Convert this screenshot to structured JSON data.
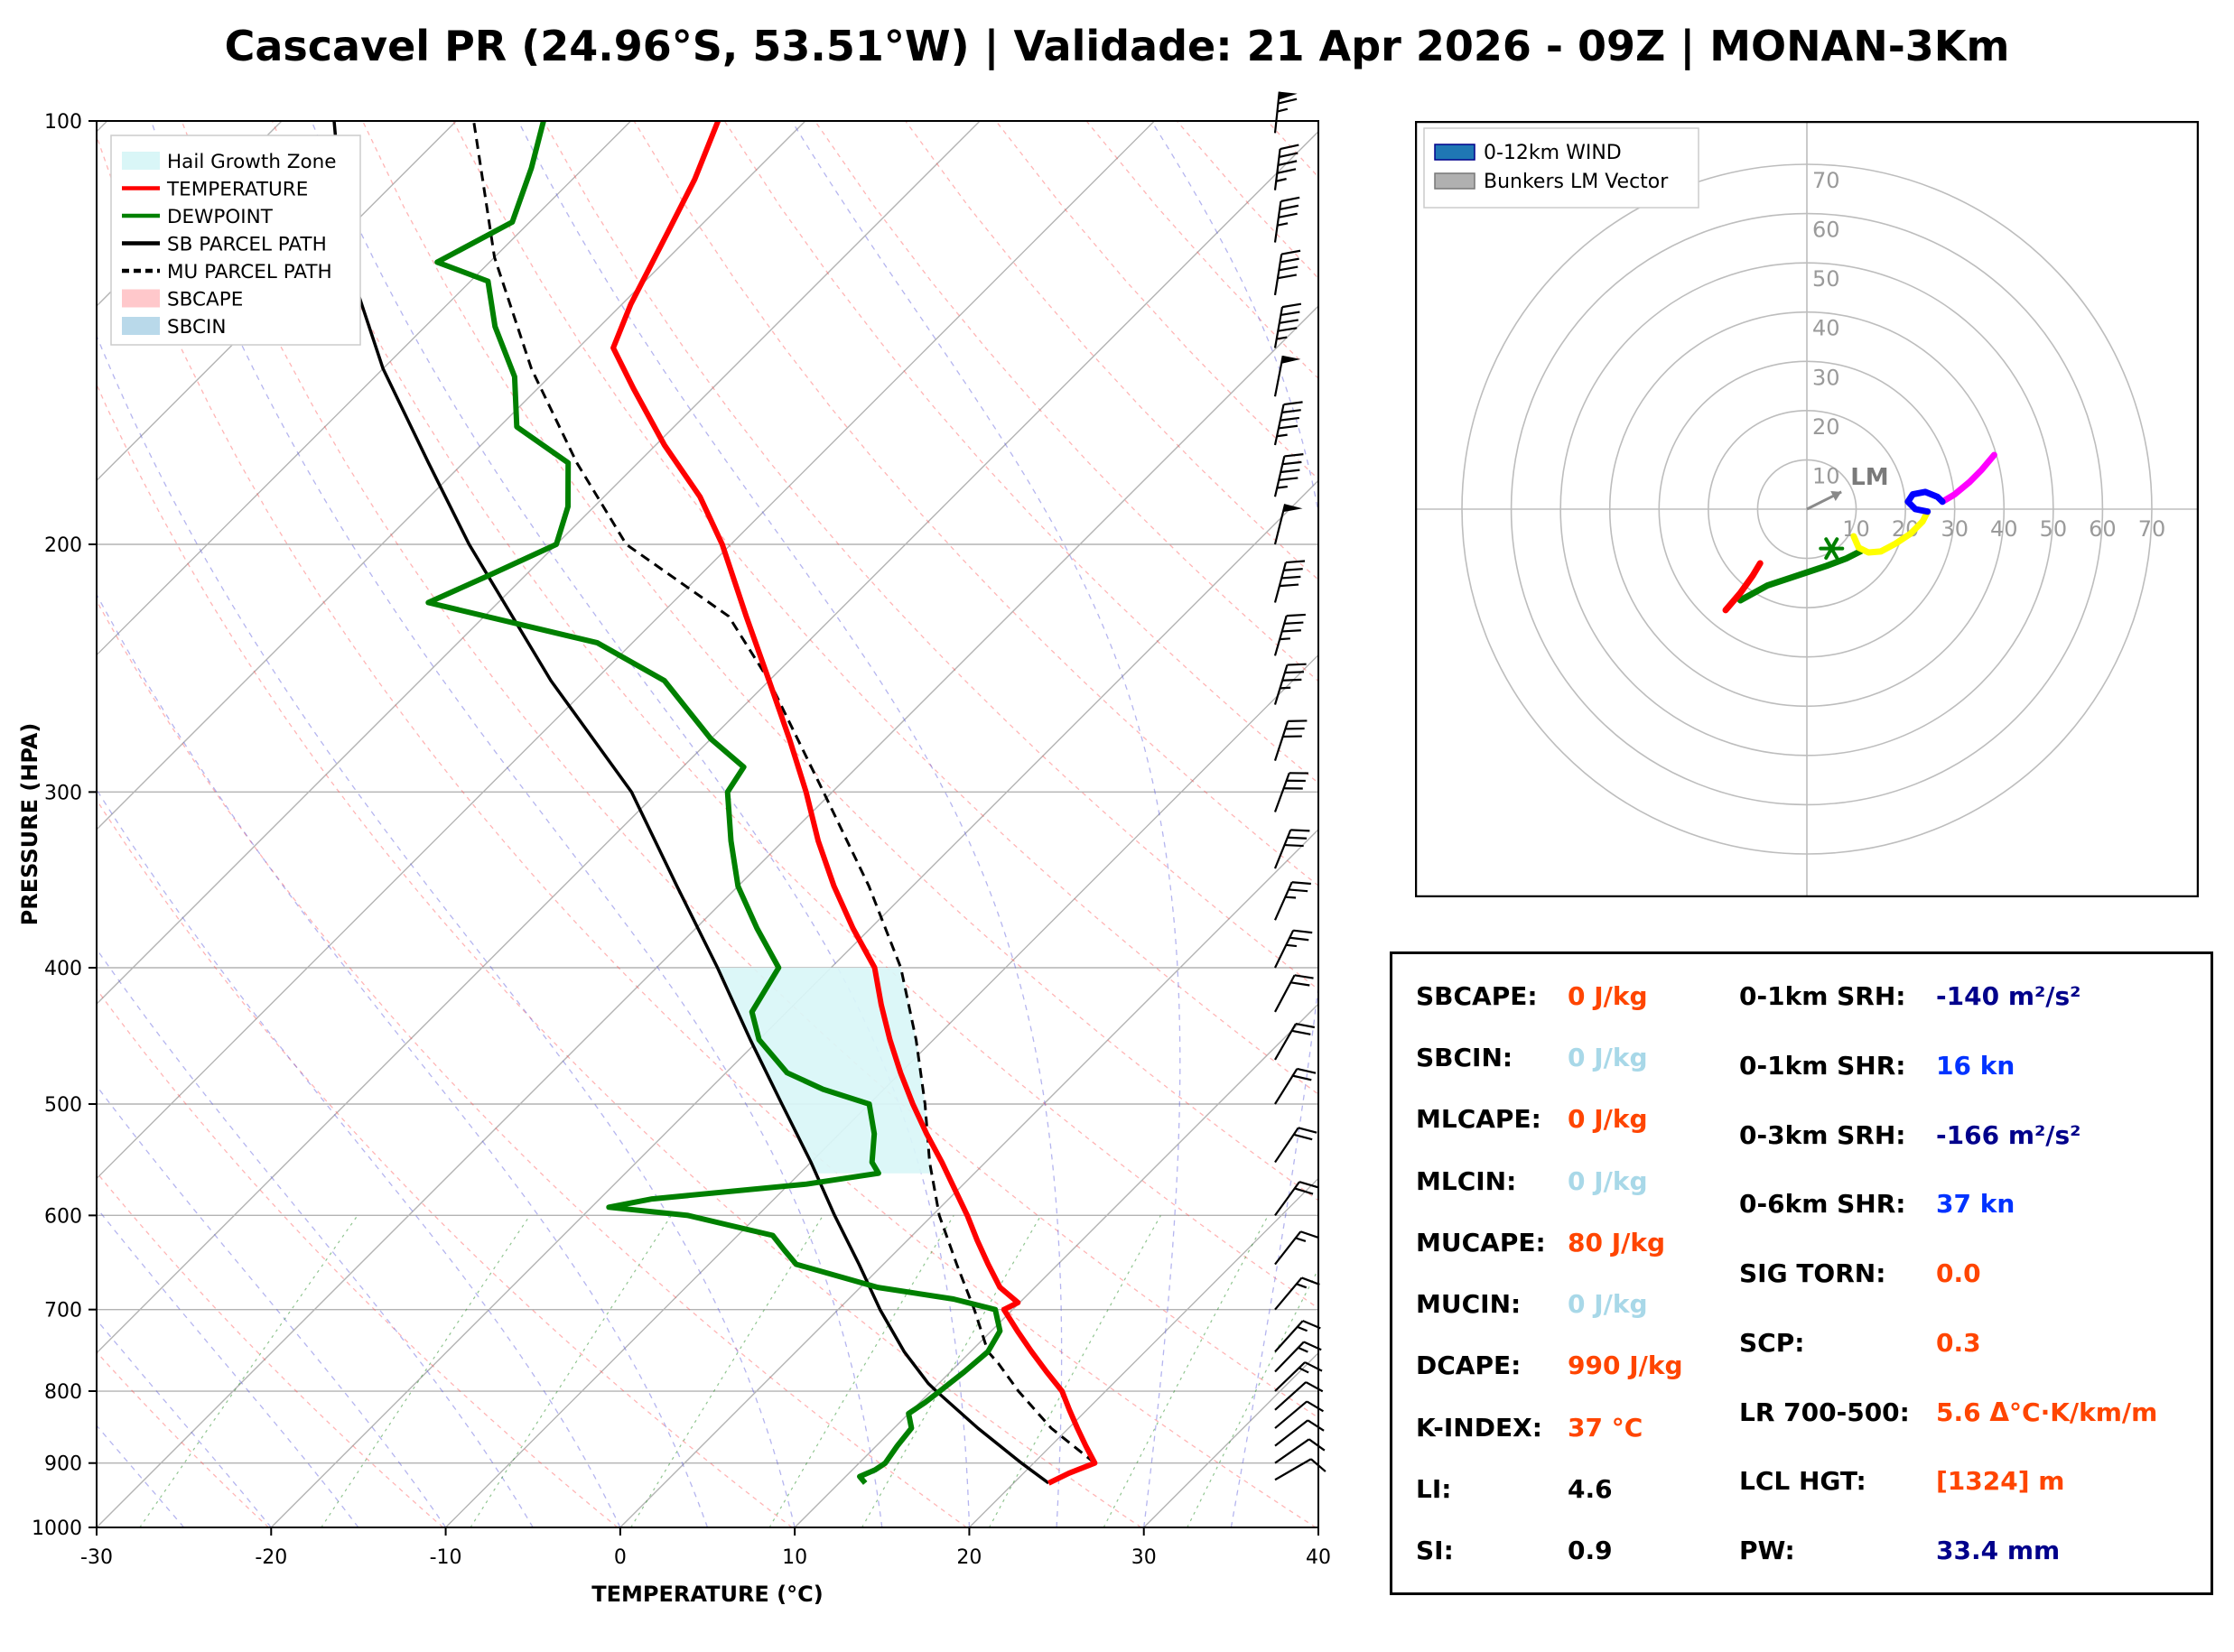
{
  "title": "Cascavel PR (24.96°S, 53.51°W) | Validade: 21 Apr 2026 - 09Z | MONAN-3Km",
  "colors": {
    "temperature": "#ff0000",
    "dewpoint": "#008000",
    "parcel": "#000000",
    "hail_zone": "#d9f6f7",
    "sbcape_patch": "#ffc8cb",
    "sbcin_patch": "#b9d9ea",
    "grid": "#b3b3b3"
  },
  "skewt": {
    "xlabel": "TEMPERATURE (°C)",
    "ylabel": "PRESSURE (HPA)",
    "x_ticks": [
      -30,
      -20,
      -10,
      0,
      10,
      20,
      30,
      40
    ],
    "p_ticks": [
      100,
      200,
      300,
      400,
      500,
      600,
      700,
      800,
      900,
      1000
    ],
    "xlim": [
      -30,
      40
    ],
    "plim": [
      100,
      1000
    ],
    "legend": [
      {
        "label": "Hail Growth Zone",
        "swatch": "patch",
        "color": "#d9f6f7"
      },
      {
        "label": "TEMPERATURE",
        "swatch": "line",
        "color": "#ff0000"
      },
      {
        "label": "DEWPOINT",
        "swatch": "line",
        "color": "#008000"
      },
      {
        "label": "SB PARCEL PATH",
        "swatch": "line",
        "color": "#000000"
      },
      {
        "label": "MU PARCEL PATH",
        "swatch": "dashed",
        "color": "#000000"
      },
      {
        "label": "SBCAPE",
        "swatch": "patch",
        "color": "#ffc8cb"
      },
      {
        "label": "SBCIN",
        "swatch": "patch",
        "color": "#b9d9ea"
      }
    ]
  },
  "chart_data": [
    {
      "type": "line",
      "name": "skew-t-log-p",
      "xlabel": "TEMPERATURE (°C)",
      "ylabel": "PRESSURE (HPA)",
      "xlim": [
        -30,
        40
      ],
      "pressure_range": [
        100,
        1000
      ],
      "series": [
        {
          "name": "TEMPERATURE",
          "color": "#ff0000",
          "points_p_T": [
            [
              930,
              22
            ],
            [
              915,
              22.6
            ],
            [
              900,
              23.5
            ],
            [
              875,
              22
            ],
            [
              850,
              20.5
            ],
            [
              825,
              19
            ],
            [
              800,
              17.5
            ],
            [
              775,
              15.5
            ],
            [
              750,
              13.5
            ],
            [
              725,
              11.5
            ],
            [
              700,
              9.5
            ],
            [
              692,
              9.9
            ],
            [
              675,
              8
            ],
            [
              650,
              6
            ],
            [
              625,
              4
            ],
            [
              600,
              2
            ],
            [
              575,
              -0.2
            ],
            [
              550,
              -2.5
            ],
            [
              525,
              -5
            ],
            [
              500,
              -7.5
            ],
            [
              475,
              -10
            ],
            [
              450,
              -12.5
            ],
            [
              425,
              -15
            ],
            [
              400,
              -17.5
            ],
            [
              375,
              -21
            ],
            [
              350,
              -24.5
            ],
            [
              325,
              -28
            ],
            [
              300,
              -31.5
            ],
            [
              275,
              -35.5
            ],
            [
              250,
              -40
            ],
            [
              225,
              -45
            ],
            [
              200,
              -50.5
            ],
            [
              185,
              -54.5
            ],
            [
              170,
              -59.5
            ],
            [
              155,
              -64.5
            ],
            [
              145,
              -68
            ],
            [
              135,
              -69.5
            ],
            [
              120,
              -71.5
            ],
            [
              110,
              -73
            ],
            [
              100,
              -75
            ]
          ]
        },
        {
          "name": "DEWPOINT",
          "color": "#008000",
          "points_p_T": [
            [
              930,
              11.5
            ],
            [
              920,
              10.8
            ],
            [
              910,
              11.3
            ],
            [
              900,
              11.5
            ],
            [
              875,
              11.2
            ],
            [
              850,
              11
            ],
            [
              830,
              10
            ],
            [
              815,
              10.3
            ],
            [
              800,
              10.5
            ],
            [
              775,
              10.8
            ],
            [
              750,
              11
            ],
            [
              725,
              10.5
            ],
            [
              700,
              9
            ],
            [
              688,
              6
            ],
            [
              675,
              1
            ],
            [
              650,
              -5
            ],
            [
              635,
              -6.5
            ],
            [
              620,
              -8
            ],
            [
              610,
              -11
            ],
            [
              600,
              -14
            ],
            [
              592,
              -19
            ],
            [
              584,
              -17
            ],
            [
              570,
              -9
            ],
            [
              560,
              -5.5
            ],
            [
              550,
              -6.5
            ],
            [
              525,
              -8
            ],
            [
              500,
              -10
            ],
            [
              488,
              -13.5
            ],
            [
              475,
              -16.5
            ],
            [
              450,
              -20
            ],
            [
              430,
              -22
            ],
            [
              400,
              -23
            ],
            [
              375,
              -26.5
            ],
            [
              350,
              -30
            ],
            [
              325,
              -33
            ],
            [
              300,
              -36
            ],
            [
              288,
              -36.5
            ],
            [
              275,
              -40
            ],
            [
              250,
              -46
            ],
            [
              235,
              -52
            ],
            [
              220,
              -64
            ],
            [
              210,
              -62
            ],
            [
              200,
              -60
            ],
            [
              188,
              -61.5
            ],
            [
              175,
              -64
            ],
            [
              165,
              -69
            ],
            [
              152,
              -72
            ],
            [
              140,
              -76
            ],
            [
              130,
              -79
            ],
            [
              126,
              -83
            ],
            [
              118,
              -81
            ],
            [
              108,
              -83
            ],
            [
              100,
              -85
            ]
          ]
        },
        {
          "name": "SB PARCEL PATH",
          "color": "#000000",
          "points_p_T": [
            [
              930,
              22
            ],
            [
              900,
              19.3
            ],
            [
              850,
              14.8
            ],
            [
              800,
              10.3
            ],
            [
              790,
              9.4
            ],
            [
              750,
              6.2
            ],
            [
              700,
              2.4
            ],
            [
              650,
              -1.4
            ],
            [
              600,
              -5.6
            ],
            [
              550,
              -10
            ],
            [
              500,
              -15
            ],
            [
              450,
              -20.5
            ],
            [
              400,
              -26.5
            ],
            [
              350,
              -33.5
            ],
            [
              300,
              -41.5
            ],
            [
              250,
              -52.5
            ],
            [
              200,
              -65
            ],
            [
              175,
              -72
            ],
            [
              150,
              -80
            ],
            [
              125,
              -88.5
            ],
            [
              100,
              -97
            ]
          ]
        },
        {
          "name": "MU PARCEL PATH",
          "color": "#000000",
          "points_p_T": [
            [
              900,
              23.5
            ],
            [
              850,
              19
            ],
            [
              800,
              15
            ],
            [
              765,
              12.3
            ],
            [
              750,
              11
            ],
            [
              700,
              7.8
            ],
            [
              650,
              4.2
            ],
            [
              600,
              0.4
            ],
            [
              550,
              -3.2
            ],
            [
              500,
              -6.8
            ],
            [
              450,
              -11
            ],
            [
              400,
              -16
            ],
            [
              350,
              -22.5
            ],
            [
              300,
              -30.5
            ],
            [
              250,
              -40
            ],
            [
              225,
              -46
            ],
            [
              200,
              -56
            ],
            [
              175,
              -63.5
            ],
            [
              150,
              -71.5
            ],
            [
              125,
              -80
            ],
            [
              100,
              -89
            ]
          ]
        }
      ],
      "hail_growth_zone_p": [
        400,
        560
      ],
      "wind_barbs": [
        {
          "p": 925,
          "kn": 8,
          "dir": 60
        },
        {
          "p": 900,
          "kn": 10,
          "dir": 55
        },
        {
          "p": 875,
          "kn": 10,
          "dir": 52
        },
        {
          "p": 850,
          "kn": 12,
          "dir": 50
        },
        {
          "p": 825,
          "kn": 12,
          "dir": 48
        },
        {
          "p": 800,
          "kn": 15,
          "dir": 46
        },
        {
          "p": 775,
          "kn": 15,
          "dir": 44
        },
        {
          "p": 750,
          "kn": 15,
          "dir": 42
        },
        {
          "p": 700,
          "kn": 15,
          "dir": 40
        },
        {
          "p": 650,
          "kn": 15,
          "dir": 38
        },
        {
          "p": 600,
          "kn": 18,
          "dir": 36
        },
        {
          "p": 550,
          "kn": 20,
          "dir": 34
        },
        {
          "p": 500,
          "kn": 20,
          "dir": 32
        },
        {
          "p": 465,
          "kn": 22,
          "dir": 30
        },
        {
          "p": 430,
          "kn": 22,
          "dir": 28
        },
        {
          "p": 400,
          "kn": 25,
          "dir": 26
        },
        {
          "p": 370,
          "kn": 25,
          "dir": 24
        },
        {
          "p": 340,
          "kn": 28,
          "dir": 22
        },
        {
          "p": 310,
          "kn": 30,
          "dir": 20
        },
        {
          "p": 285,
          "kn": 30,
          "dir": 18
        },
        {
          "p": 260,
          "kn": 35,
          "dir": 17
        },
        {
          "p": 240,
          "kn": 35,
          "dir": 16
        },
        {
          "p": 220,
          "kn": 40,
          "dir": 15
        },
        {
          "p": 200,
          "kn": 50,
          "dir": 14
        },
        {
          "p": 185,
          "kn": 45,
          "dir": 13
        },
        {
          "p": 170,
          "kn": 45,
          "dir": 12
        },
        {
          "p": 157,
          "kn": 50,
          "dir": 11
        },
        {
          "p": 145,
          "kn": 45,
          "dir": 10
        },
        {
          "p": 133,
          "kn": 40,
          "dir": 9
        },
        {
          "p": 122,
          "kn": 35,
          "dir": 8
        },
        {
          "p": 112,
          "kn": 45,
          "dir": 7
        },
        {
          "p": 102,
          "kn": 65,
          "dir": 6
        }
      ]
    },
    {
      "type": "line",
      "name": "hodograph",
      "rings_kn": [
        10,
        20,
        30,
        40,
        50,
        60,
        70
      ],
      "segments": [
        {
          "name": "1-3km",
          "color": "#008000",
          "points_uv": [
            [
              -13.5,
              -18.5
            ],
            [
              -8,
              -15.5
            ],
            [
              -2,
              -13.5
            ],
            [
              4,
              -11.5
            ],
            [
              8,
              -10
            ],
            [
              11,
              -8.5
            ]
          ]
        },
        {
          "name": "3-6km",
          "color": "#ffff00",
          "points_uv": [
            [
              9.5,
              -5.5
            ],
            [
              10.5,
              -7.8
            ],
            [
              12.5,
              -8.8
            ],
            [
              15,
              -8.6
            ],
            [
              18,
              -7
            ],
            [
              21,
              -5
            ],
            [
              23.5,
              -2.5
            ],
            [
              24.5,
              -0.5
            ]
          ]
        },
        {
          "name": "9-12km",
          "color": "#ff00ff",
          "points_uv": [
            [
              27.5,
              1.5
            ],
            [
              30,
              3
            ],
            [
              33,
              5.5
            ],
            [
              35.5,
              8
            ],
            [
              38,
              11
            ]
          ]
        },
        {
          "name": "6-9km",
          "color": "#0000ff",
          "points_uv": [
            [
              24.5,
              -0.5
            ],
            [
              22,
              0
            ],
            [
              20.5,
              1.5
            ],
            [
              21.5,
              3
            ],
            [
              24,
              3.5
            ],
            [
              26.5,
              2.5
            ],
            [
              27.5,
              1.5
            ]
          ]
        },
        {
          "name": "0-1km",
          "color": "#ff0000",
          "points_uv": [
            [
              -16.5,
              -20.5
            ],
            [
              -13.5,
              -17
            ],
            [
              -11,
              -13.5
            ],
            [
              -9.5,
              -11
            ]
          ]
        }
      ],
      "lm_vector_uv": [
        7,
        3.5
      ],
      "lm_label": "LM",
      "surface_marker_uv": [
        5,
        -8
      ],
      "legend": [
        {
          "label": "0-12km WIND",
          "color": "#1f77b4"
        },
        {
          "label": "Bunkers LM Vector",
          "color": "#b0b0b0"
        }
      ]
    }
  ],
  "indices": {
    "left": [
      {
        "label": "SBCAPE:",
        "value": "0 J/kg",
        "color": "orange"
      },
      {
        "label": "SBCIN:",
        "value": "0 J/kg",
        "color": "lightblue"
      },
      {
        "label": "MLCAPE:",
        "value": "0 J/kg",
        "color": "orange"
      },
      {
        "label": "MLCIN:",
        "value": "0 J/kg",
        "color": "lightblue"
      },
      {
        "label": "MUCAPE:",
        "value": "80 J/kg",
        "color": "orange"
      },
      {
        "label": "MUCIN:",
        "value": "0 J/kg",
        "color": "lightblue"
      },
      {
        "label": "DCAPE:",
        "value": "990 J/kg",
        "color": "orange"
      },
      {
        "label": "K-INDEX:",
        "value": "37 °C",
        "color": "orange"
      },
      {
        "label": "LI:",
        "value": "4.6",
        "color": "black"
      },
      {
        "label": "SI:",
        "value": "0.9",
        "color": "black"
      }
    ],
    "right": [
      {
        "label": "0-1km SRH:",
        "value": "-140 m²/s²",
        "color": "navy"
      },
      {
        "label": "0-1km SHR:",
        "value": "16 kn",
        "color": "blue"
      },
      {
        "label": "0-3km SRH:",
        "value": "-166 m²/s²",
        "color": "navy"
      },
      {
        "label": "0-6km SHR:",
        "value": "37 kn",
        "color": "blue"
      },
      {
        "label": "SIG TORN:",
        "value": "0.0",
        "color": "orange"
      },
      {
        "label": "SCP:",
        "value": "0.3",
        "color": "orange"
      },
      {
        "label": "LR 700-500:",
        "value": "5.6 Δ°C·K/km/m",
        "color": "orange"
      },
      {
        "label": "LCL HGT:",
        "value": "[1324] m",
        "color": "orange"
      },
      {
        "label": "PW:",
        "value": "33.4 mm",
        "color": "navy"
      }
    ]
  }
}
